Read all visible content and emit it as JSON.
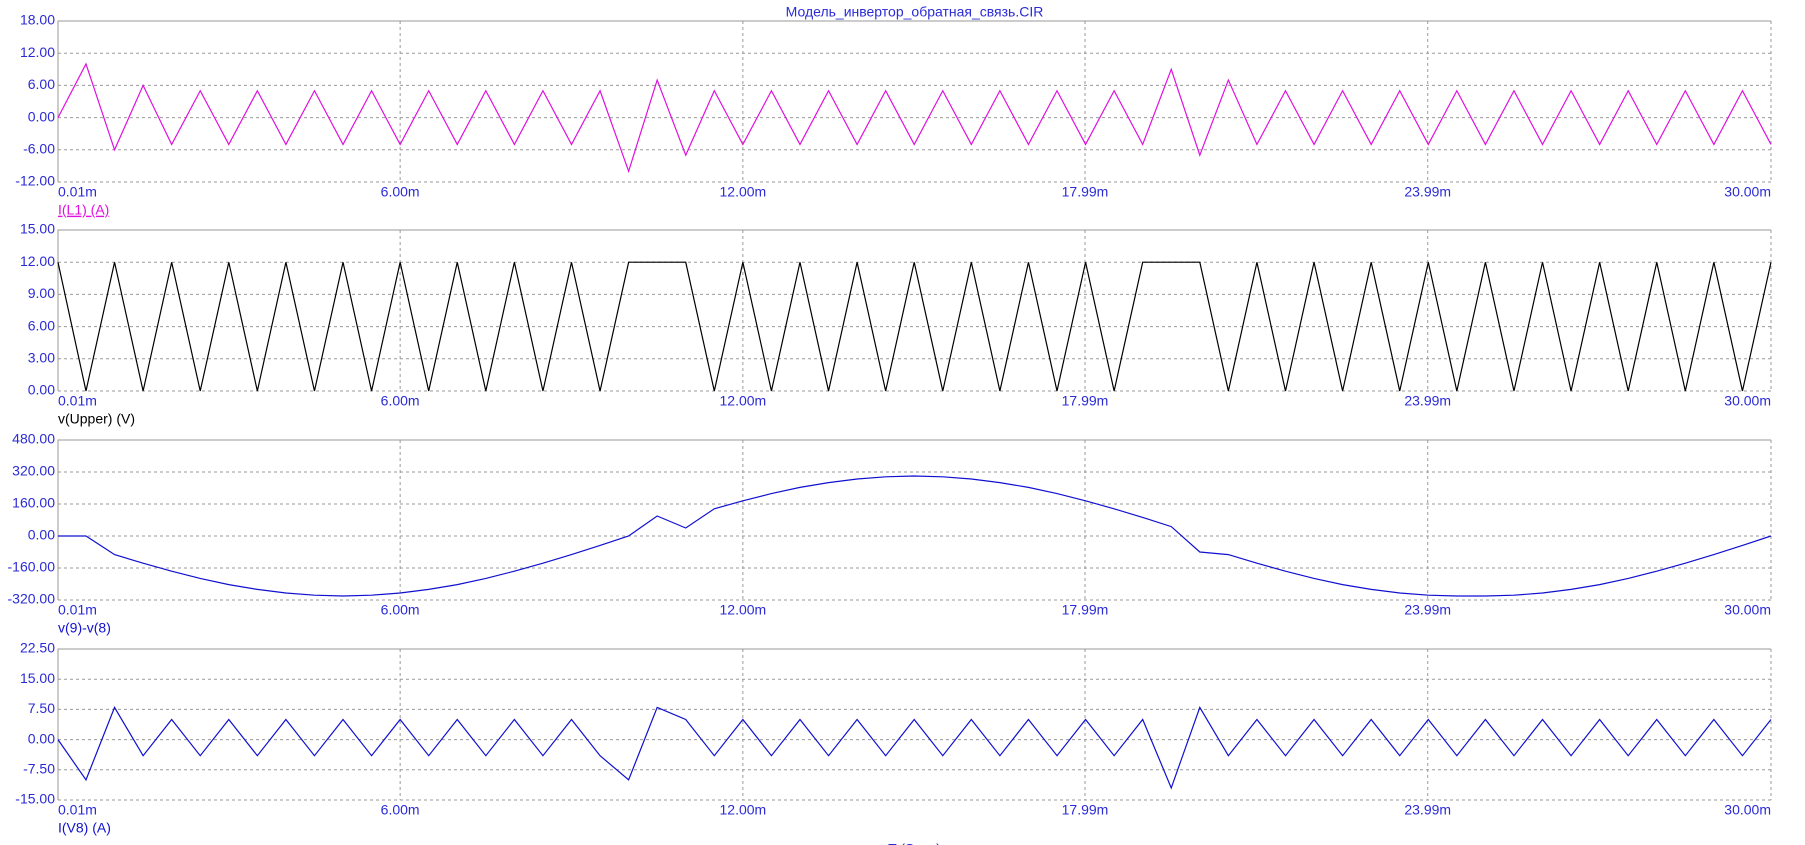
{
  "chart_data": [
    {
      "type": "line",
      "title": "Модель_инвертор_обратная_связь.CIR",
      "x": [
        0.01,
        0.5,
        1,
        1.5,
        2,
        2.5,
        3,
        3.5,
        4,
        4.5,
        5,
        5.5,
        6,
        6.5,
        7,
        7.5,
        8,
        8.5,
        9,
        9.5,
        10,
        10.5,
        11,
        11.5,
        12,
        12.5,
        13,
        13.5,
        14,
        14.5,
        15,
        15.5,
        16,
        16.5,
        17,
        17.5,
        18,
        18.5,
        19,
        19.5,
        20,
        20.5,
        21,
        21.5,
        22,
        22.5,
        23,
        23.5,
        24,
        24.5,
        25,
        25.5,
        26,
        26.5,
        27,
        27.5,
        28,
        28.5,
        29,
        29.5,
        30
      ],
      "series": [
        {
          "name": "I(L1) (A)",
          "color": "#e010e0",
          "values": [
            0,
            10,
            -6,
            6,
            -5,
            5,
            -5,
            5,
            -5,
            5,
            -5,
            5,
            -5,
            5,
            -5,
            5,
            -5,
            5,
            -5,
            5,
            -10,
            7,
            -7,
            5,
            -5,
            5,
            -5,
            5,
            -5,
            5,
            -5,
            5,
            -5,
            5,
            -5,
            5,
            -5,
            5,
            -5,
            9,
            -7,
            7,
            -5,
            5,
            -5,
            5,
            -5,
            5,
            -5,
            5,
            -5,
            5,
            -5,
            5,
            -5,
            5,
            -5,
            5,
            -5,
            5,
            -5
          ]
        }
      ],
      "xlim": [
        0.01,
        30.0
      ],
      "xticks": [
        {
          "value": 0.01,
          "label": "0.01m"
        },
        {
          "value": 6.0,
          "label": "6.00m"
        },
        {
          "value": 12.0,
          "label": "12.00m"
        },
        {
          "value": 17.99,
          "label": "17.99m"
        },
        {
          "value": 23.99,
          "label": "23.99m"
        },
        {
          "value": 30.0,
          "label": "30.00m"
        }
      ],
      "ylim": [
        -12,
        18
      ],
      "yticks": [
        {
          "value": -12,
          "label": "-12.00"
        },
        {
          "value": -6,
          "label": "-6.00"
        },
        {
          "value": 0,
          "label": "0.00"
        },
        {
          "value": 6,
          "label": "6.00"
        },
        {
          "value": 12,
          "label": "12.00"
        },
        {
          "value": 18,
          "label": "18.00"
        }
      ],
      "grid": true
    },
    {
      "type": "line",
      "x": [
        0.01,
        0.5,
        1,
        1.5,
        2,
        2.5,
        3,
        3.5,
        4,
        4.5,
        5,
        5.5,
        6,
        6.5,
        7,
        7.5,
        8,
        8.5,
        9,
        9.5,
        10,
        10.5,
        11,
        11.5,
        12,
        12.5,
        13,
        13.5,
        14,
        14.5,
        15,
        15.5,
        16,
        16.5,
        17,
        17.5,
        18,
        18.5,
        19,
        19.5,
        20,
        20.5,
        21,
        21.5,
        22,
        22.5,
        23,
        23.5,
        24,
        24.5,
        25,
        25.5,
        26,
        26.5,
        27,
        27.5,
        28,
        28.5,
        29,
        29.5,
        30
      ],
      "series": [
        {
          "name": "v(Upper) (V)",
          "color": "#000000",
          "values": [
            12,
            0,
            12,
            0,
            12,
            0,
            12,
            0,
            12,
            0,
            12,
            0,
            12,
            0,
            12,
            0,
            12,
            0,
            12,
            0,
            12,
            12,
            12,
            0,
            12,
            0,
            12,
            0,
            12,
            0,
            12,
            0,
            12,
            0,
            12,
            0,
            12,
            0,
            12,
            12,
            12,
            0,
            12,
            0,
            12,
            0,
            12,
            0,
            12,
            0,
            12,
            0,
            12,
            0,
            12,
            0,
            12,
            0,
            12,
            0,
            12
          ]
        }
      ],
      "xlim": [
        0.01,
        30.0
      ],
      "xticks": [
        {
          "value": 0.01,
          "label": "0.01m"
        },
        {
          "value": 6.0,
          "label": "6.00m"
        },
        {
          "value": 12.0,
          "label": "12.00m"
        },
        {
          "value": 17.99,
          "label": "17.99m"
        },
        {
          "value": 23.99,
          "label": "23.99m"
        },
        {
          "value": 30.0,
          "label": "30.00m"
        }
      ],
      "ylim": [
        0,
        15
      ],
      "yticks": [
        {
          "value": 0,
          "label": "0.00"
        },
        {
          "value": 3,
          "label": "3.00"
        },
        {
          "value": 6,
          "label": "6.00"
        },
        {
          "value": 9,
          "label": "9.00"
        },
        {
          "value": 12,
          "label": "12.00"
        },
        {
          "value": 15,
          "label": "15.00"
        }
      ],
      "grid": true
    },
    {
      "type": "line",
      "x": [
        0.01,
        0.5,
        1,
        1.5,
        2,
        2.5,
        3,
        3.5,
        4,
        4.5,
        5,
        5.5,
        6,
        6.5,
        7,
        7.5,
        8,
        8.5,
        9,
        9.5,
        10,
        10.5,
        11,
        11.5,
        12,
        12.5,
        13,
        13.5,
        14,
        14.5,
        15,
        15.5,
        16,
        16.5,
        17,
        17.5,
        18,
        18.5,
        19,
        19.5,
        20,
        20.5,
        21,
        21.5,
        22,
        22.5,
        23,
        23.5,
        24,
        24.5,
        25,
        25.5,
        26,
        26.5,
        27,
        27.5,
        28,
        28.5,
        29,
        29.5,
        30
      ],
      "series": [
        {
          "name": "v(9)-v(8)",
          "color": "#1010d0",
          "values": [
            0,
            0,
            -93,
            -136,
            -176,
            -212,
            -243,
            -267,
            -285,
            -296,
            -300,
            -296,
            -285,
            -267,
            -243,
            -212,
            -176,
            -136,
            -93,
            -47,
            0,
            100,
            40,
            136,
            176,
            212,
            243,
            267,
            285,
            296,
            300,
            296,
            285,
            267,
            243,
            212,
            176,
            136,
            93,
            47,
            -80,
            -93,
            -136,
            -176,
            -212,
            -243,
            -267,
            -285,
            -296,
            -300,
            -300,
            -296,
            -285,
            -267,
            -243,
            -212,
            -176,
            -136,
            -93,
            -47,
            0
          ]
        }
      ],
      "xlim": [
        0.01,
        30.0
      ],
      "xticks": [
        {
          "value": 0.01,
          "label": "0.01m"
        },
        {
          "value": 6.0,
          "label": "6.00m"
        },
        {
          "value": 12.0,
          "label": "12.00m"
        },
        {
          "value": 17.99,
          "label": "17.99m"
        },
        {
          "value": 23.99,
          "label": "23.99m"
        },
        {
          "value": 30.0,
          "label": "30.00m"
        }
      ],
      "ylim": [
        -320,
        480
      ],
      "yticks": [
        {
          "value": -320,
          "label": "-320.00"
        },
        {
          "value": -160,
          "label": "-160.00"
        },
        {
          "value": 0,
          "label": "0.00"
        },
        {
          "value": 160,
          "label": "160.00"
        },
        {
          "value": 320,
          "label": "320.00"
        },
        {
          "value": 480,
          "label": "480.00"
        }
      ],
      "grid": true
    },
    {
      "type": "line",
      "xlabel": "T (Secs)",
      "x": [
        0.01,
        0.5,
        1,
        1.5,
        2,
        2.5,
        3,
        3.5,
        4,
        4.5,
        5,
        5.5,
        6,
        6.5,
        7,
        7.5,
        8,
        8.5,
        9,
        9.5,
        10,
        10.5,
        11,
        11.5,
        12,
        12.5,
        13,
        13.5,
        14,
        14.5,
        15,
        15.5,
        16,
        16.5,
        17,
        17.5,
        18,
        18.5,
        19,
        19.5,
        20,
        20.5,
        21,
        21.5,
        22,
        22.5,
        23,
        23.5,
        24,
        24.5,
        25,
        25.5,
        26,
        26.5,
        27,
        27.5,
        28,
        28.5,
        29,
        29.5,
        30
      ],
      "series": [
        {
          "name": "I(V8) (A)",
          "color": "#1010d0",
          "values": [
            0,
            -10,
            8,
            -4,
            5,
            -4,
            5,
            -4,
            5,
            -4,
            5,
            -4,
            5,
            -4,
            5,
            -4,
            5,
            -4,
            5,
            -4,
            -10,
            8,
            5,
            -4,
            5,
            -4,
            5,
            -4,
            5,
            -4,
            5,
            -4,
            5,
            -4,
            5,
            -4,
            5,
            -4,
            5,
            -12,
            8,
            -4,
            5,
            -4,
            5,
            -4,
            5,
            -4,
            5,
            -4,
            5,
            -4,
            5,
            -4,
            5,
            -4,
            5,
            -4,
            5,
            -4,
            5
          ]
        }
      ],
      "xlim": [
        0.01,
        30.0
      ],
      "xticks": [
        {
          "value": 0.01,
          "label": "0.01m"
        },
        {
          "value": 6.0,
          "label": "6.00m"
        },
        {
          "value": 12.0,
          "label": "12.00m"
        },
        {
          "value": 17.99,
          "label": "17.99m"
        },
        {
          "value": 23.99,
          "label": "23.99m"
        },
        {
          "value": 30.0,
          "label": "30.00m"
        }
      ],
      "ylim": [
        -15,
        22.5
      ],
      "yticks": [
        {
          "value": -15,
          "label": "-15.00"
        },
        {
          "value": -7.5,
          "label": "-7.50"
        },
        {
          "value": 0,
          "label": "0.00"
        },
        {
          "value": 7.5,
          "label": "7.50"
        },
        {
          "value": 15,
          "label": "15.00"
        },
        {
          "value": 22.5,
          "label": "22.50"
        }
      ],
      "grid": true
    }
  ]
}
